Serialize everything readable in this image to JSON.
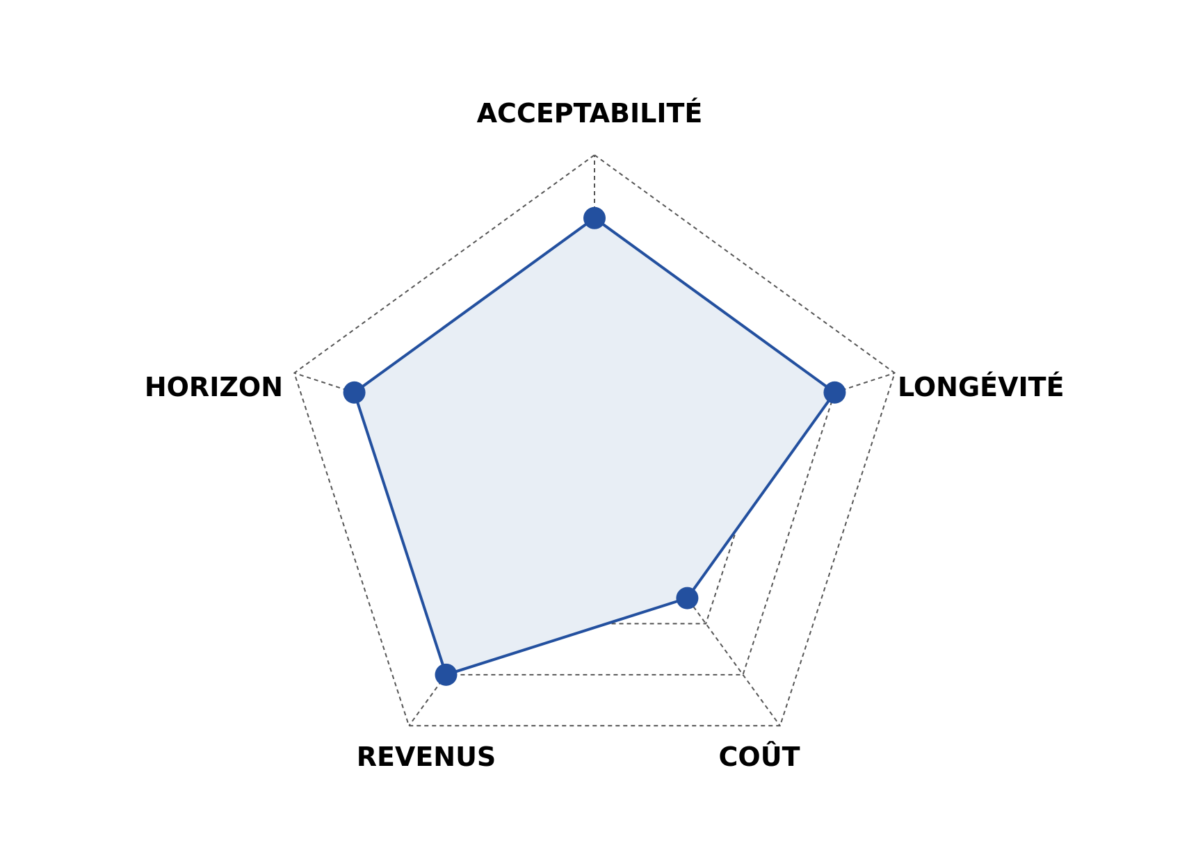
{
  "chart_data": {
    "type": "radar",
    "axes": [
      "ACCEPTABILITÉ",
      "LONGÉVITÉ",
      "COÛT",
      "REVENUS",
      "HORIZON"
    ],
    "series": [
      {
        "values": [
          4,
          4,
          2.5,
          4,
          4
        ]
      }
    ],
    "scale_max": 5,
    "grid_levels": [
      1,
      2,
      3,
      4,
      5
    ],
    "grid": true,
    "colors": {
      "line": "#23509f",
      "fill": "#e8eef5",
      "grid": "#555555",
      "label": "#000000"
    }
  }
}
